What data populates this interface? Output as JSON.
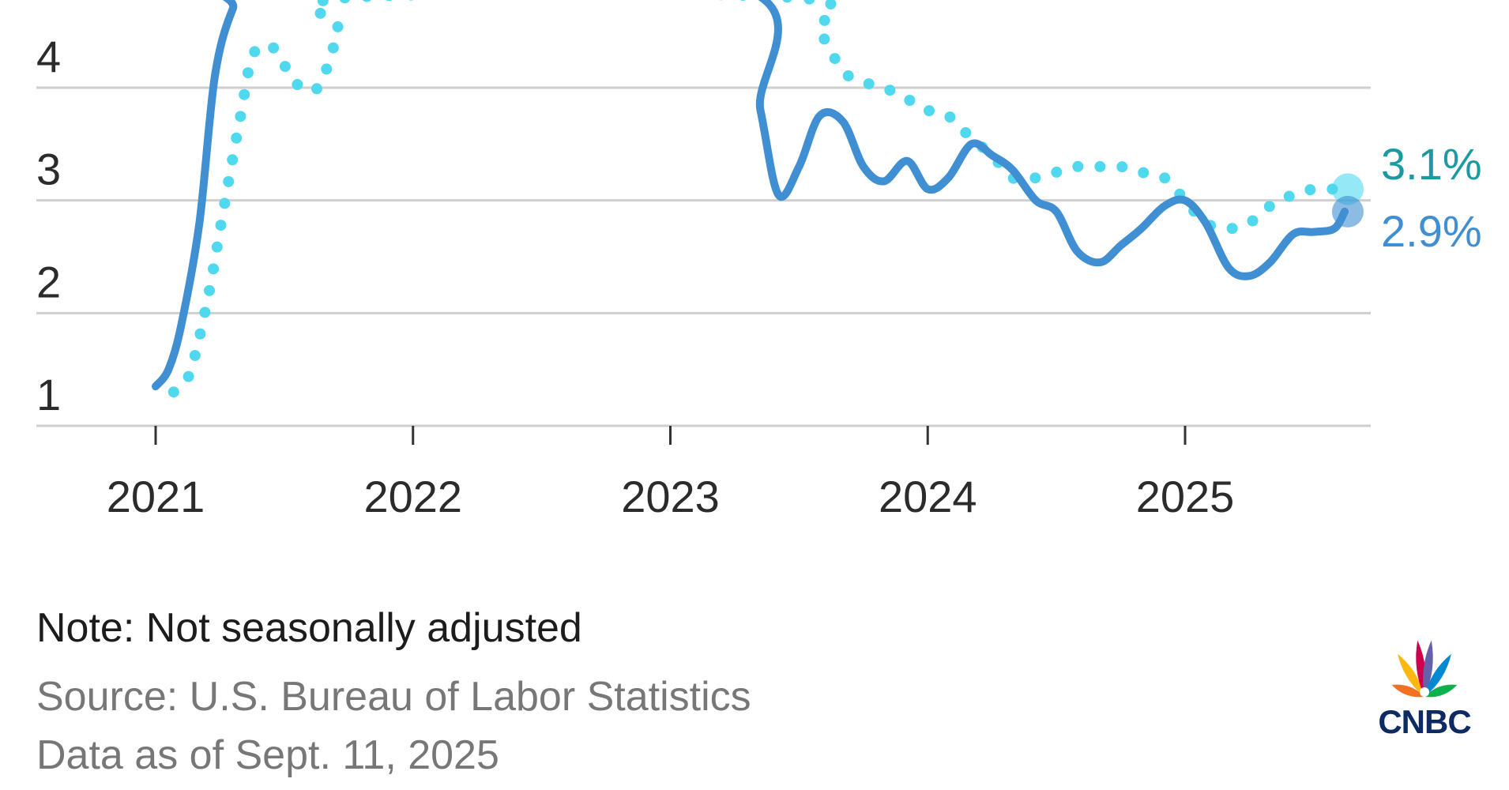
{
  "chart_data": {
    "type": "line",
    "y_ticks": [
      "1",
      "2",
      "3",
      "4"
    ],
    "x_ticks": [
      "2021",
      "2022",
      "2023",
      "2024",
      "2025"
    ],
    "ylim": [
      0.7,
      4.8
    ],
    "xlim": [
      2020.55,
      2025.75
    ],
    "grid": true,
    "series": [
      {
        "color": "#3f8fd2",
        "style": "solid",
        "end_label": "2.9%",
        "x": [
          2021.0,
          2021.05,
          2021.1,
          2021.17,
          2021.23,
          2021.3,
          2021.38,
          2023.25,
          2023.35,
          2023.42,
          2023.5,
          2023.58,
          2023.67,
          2023.75,
          2023.83,
          2023.92,
          2024.0,
          2024.08,
          2024.17,
          2024.25,
          2024.33,
          2024.42,
          2024.5,
          2024.58,
          2024.67,
          2024.75,
          2024.83,
          2024.92,
          2025.0,
          2025.08,
          2025.17,
          2025.25,
          2025.33,
          2025.42,
          2025.5,
          2025.58,
          2025.62
        ],
        "y": [
          1.35,
          1.5,
          1.9,
          2.8,
          4.1,
          4.7,
          4.95,
          4.9,
          3.8,
          3.05,
          3.3,
          3.75,
          3.7,
          3.3,
          3.17,
          3.35,
          3.1,
          3.2,
          3.5,
          3.4,
          3.27,
          3.0,
          2.9,
          2.55,
          2.45,
          2.6,
          2.75,
          2.95,
          3.0,
          2.8,
          2.4,
          2.33,
          2.45,
          2.7,
          2.72,
          2.75,
          2.9
        ]
      },
      {
        "color": "#4fd8ee",
        "style": "dotted",
        "end_label": "3.1%",
        "x": [
          2021.07,
          2021.13,
          2021.2,
          2021.27,
          2021.33,
          2021.38,
          2021.46,
          2021.54,
          2021.63,
          2021.71,
          2021.75,
          2023.48,
          2023.58,
          2023.67,
          2023.75,
          2023.83,
          2023.92,
          2024.0,
          2024.08,
          2024.17,
          2024.25,
          2024.33,
          2024.42,
          2024.5,
          2024.58,
          2024.67,
          2024.75,
          2024.83,
          2024.92,
          2025.0,
          2025.08,
          2025.17,
          2025.25,
          2025.33,
          2025.42,
          2025.5,
          2025.58,
          2025.62
        ],
        "y": [
          1.3,
          1.45,
          2.1,
          3.0,
          3.75,
          4.3,
          4.35,
          4.05,
          4.0,
          4.5,
          4.8,
          4.8,
          4.5,
          4.15,
          4.05,
          4.0,
          3.9,
          3.8,
          3.75,
          3.55,
          3.4,
          3.2,
          3.2,
          3.25,
          3.3,
          3.3,
          3.3,
          3.25,
          3.2,
          3.0,
          2.8,
          2.75,
          2.8,
          2.95,
          3.05,
          3.1,
          3.1,
          3.1
        ]
      }
    ]
  },
  "footer": {
    "note": "Note: Not seasonally adjusted",
    "source": "Source: U.S. Bureau of Labor Statistics",
    "as_of": "Data as of Sept. 11, 2025"
  },
  "brand": {
    "logo_text": "CNBC",
    "peacock_colors": [
      "#f37021",
      "#fcb711",
      "#cc004c",
      "#6460aa",
      "#0089d0",
      "#0db14b"
    ]
  }
}
